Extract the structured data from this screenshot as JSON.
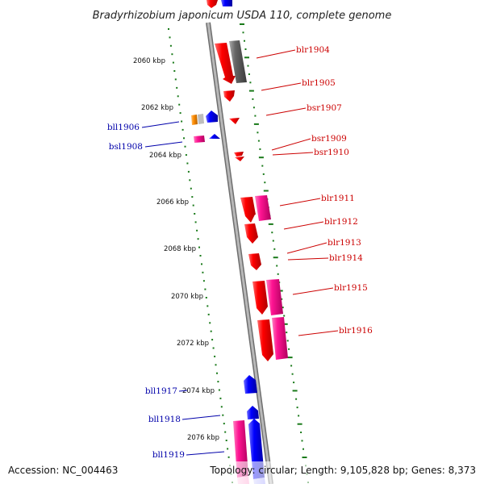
{
  "header": {
    "title": "Bradyrhizobium japonicum USDA 110, complete genome"
  },
  "footer": {
    "accession": "Accession: NC_004463",
    "topology": "Topology: circular; Length: 9,105,828 bp; Genes: 8,373"
  },
  "colors": {
    "forward_label": "#cc0000",
    "reverse_label": "#0000aa",
    "backbone": "#999999",
    "ruler_dots": "#1a7a1a",
    "gene_red": "#ff0000",
    "gene_pink": "#ff1493",
    "gene_gray": "#666666",
    "gene_blue": "#0000ff",
    "gene_orange": "#ff8c00"
  },
  "ruler": {
    "ticks": [
      "2060 kbp",
      "2062 kbp",
      "2064 kbp",
      "2066 kbp",
      "2068 kbp",
      "2070 kbp",
      "2072 kbp",
      "2074 kbp",
      "2076 kbp"
    ]
  },
  "forward_labels": [
    "blr1904",
    "blr1905",
    "bsr1907",
    "bsr1909",
    "bsr1910",
    "blr1911",
    "blr1912",
    "blr1913",
    "blr1914",
    "blr1915",
    "blr1916"
  ],
  "reverse_labels": [
    "bll1906",
    "bsl1908",
    "bll1917",
    "bll1918",
    "bll1919"
  ]
}
